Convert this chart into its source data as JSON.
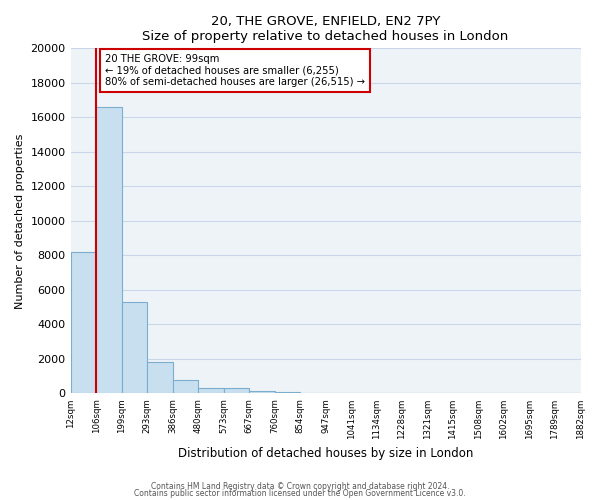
{
  "title": "20, THE GROVE, ENFIELD, EN2 7PY",
  "subtitle": "Size of property relative to detached houses in London",
  "xlabel": "Distribution of detached houses by size in London",
  "ylabel": "Number of detached properties",
  "bar_color": "#c8dff0",
  "bar_edge_color": "#7aadce",
  "bar_values": [
    8200,
    16600,
    5300,
    1800,
    800,
    300,
    300,
    150,
    100,
    0,
    0,
    0,
    0,
    0,
    0,
    0,
    0,
    0,
    0,
    0
  ],
  "bar_labels": [
    "12sqm",
    "106sqm",
    "199sqm",
    "293sqm",
    "386sqm",
    "480sqm",
    "573sqm",
    "667sqm",
    "760sqm",
    "854sqm",
    "947sqm",
    "1041sqm",
    "1134sqm",
    "1228sqm",
    "1321sqm",
    "1415sqm",
    "1508sqm",
    "1602sqm",
    "1695sqm",
    "1789sqm",
    "1882sqm"
  ],
  "ylim": [
    0,
    20000
  ],
  "yticks": [
    0,
    2000,
    4000,
    6000,
    8000,
    10000,
    12000,
    14000,
    16000,
    18000,
    20000
  ],
  "red_line_x": 1.0,
  "annotation_text": "20 THE GROVE: 99sqm\n← 19% of detached houses are smaller (6,255)\n80% of semi-detached houses are larger (26,515) →",
  "annotation_box_color": "#ffffff",
  "annotation_box_edge_color": "#cc0000",
  "footer_line1": "Contains HM Land Registry data © Crown copyright and database right 2024.",
  "footer_line2": "Contains public sector information licensed under the Open Government Licence v3.0.",
  "grid_color": "#c8d8e8",
  "background_color": "#eef3f8",
  "num_bars": 20
}
